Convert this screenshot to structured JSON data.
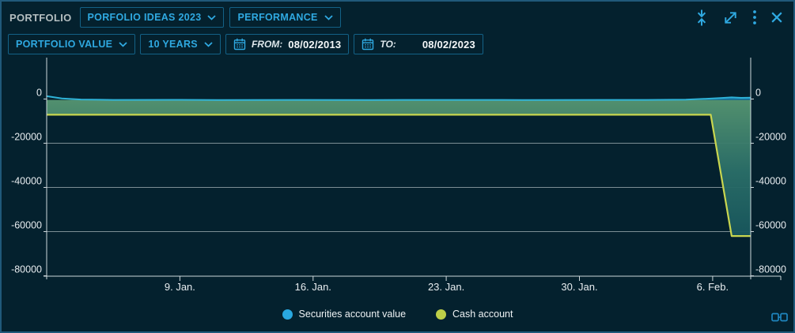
{
  "panel": {
    "title": "PORTFOLIO"
  },
  "header": {
    "portfolio_dropdown": {
      "value": "PORFOLIO IDEAS 2023"
    },
    "view_dropdown": {
      "value": "PERFORMANCE"
    }
  },
  "toolbar": {
    "metric_dropdown": {
      "value": "PORTFOLIO VALUE"
    },
    "range_dropdown": {
      "value": "10 YEARS"
    },
    "from": {
      "label": "FROM:",
      "value": "08/02/2013"
    },
    "to": {
      "label": "TO:",
      "value": "08/02/2023"
    }
  },
  "colors": {
    "accent": "#2fa9e1",
    "background": "#04212e",
    "securities_line": "#2fb3d8",
    "cash_line": "#c9d64f",
    "area_fill_top": "#579671",
    "area_fill_bottom": "#0c4755",
    "wedge_fill": "#1478ad",
    "axis": "#cdd7db"
  },
  "chart_data": {
    "type": "area",
    "title": "",
    "grid": true,
    "legend_position": "bottom",
    "x_axis": {
      "tick_labels": [
        "9. Jan.",
        "16. Jan.",
        "23. Jan.",
        "30. Jan.",
        "6. Feb."
      ],
      "tick_days": [
        7,
        14,
        21,
        28,
        35
      ],
      "visible_range_days": [
        0,
        37
      ],
      "start": "2. Jan.",
      "end": "8. Feb."
    },
    "y_axis": {
      "tick_labels": [
        "0",
        "-20000",
        "-40000",
        "-60000",
        "-80000"
      ],
      "tick_values": [
        0,
        -20000,
        -40000,
        -60000,
        -80000
      ],
      "ylim": [
        -80200,
        18800
      ]
    },
    "series": [
      {
        "name": "Securities account value",
        "legend_color": "#29a8e0",
        "points_day_value": [
          [
            0,
            1300
          ],
          [
            0.8,
            300
          ],
          [
            1.8,
            -200
          ],
          [
            3.5,
            -400
          ],
          [
            7,
            -350
          ],
          [
            9,
            -430
          ],
          [
            13,
            -390
          ],
          [
            17,
            -420
          ],
          [
            21,
            -400
          ],
          [
            25,
            -420
          ],
          [
            29,
            -400
          ],
          [
            31.5,
            -380
          ],
          [
            33.6,
            -250
          ],
          [
            34.6,
            100
          ],
          [
            35.5,
            500
          ],
          [
            36,
            750
          ],
          [
            36.5,
            550
          ],
          [
            37,
            650
          ]
        ]
      },
      {
        "name": "Cash account",
        "legend_color": "#bdcf48",
        "points_day_value": [
          [
            0,
            -7100
          ],
          [
            34.9,
            -7100
          ],
          [
            36,
            -62000
          ],
          [
            37,
            -62000
          ]
        ]
      }
    ]
  }
}
